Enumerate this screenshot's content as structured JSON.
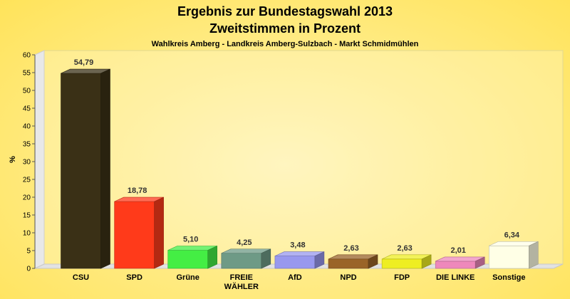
{
  "chart_data": {
    "type": "bar",
    "title": "Ergebnis zur Bundestagswahl 2013",
    "title_line2": "Zweitstimmen in Prozent",
    "subtitle": "Wahlkreis Amberg - Landkreis Amberg-Sulzbach - Markt Schmidmühlen",
    "ylabel": "%",
    "xlabel": "",
    "ylim": [
      0,
      60
    ],
    "yticks": [
      0,
      5,
      10,
      15,
      20,
      25,
      30,
      35,
      40,
      45,
      50,
      55,
      60
    ],
    "categories": [
      "CSU",
      "SPD",
      "Grüne",
      "FREIE WÄHLER",
      "AfD",
      "NPD",
      "FDP",
      "DIE LINKE",
      "Sonstige"
    ],
    "category_lines": [
      [
        "CSU"
      ],
      [
        "SPD"
      ],
      [
        "Grüne"
      ],
      [
        "FREIE",
        "WÄHLER"
      ],
      [
        "AfD"
      ],
      [
        "NPD"
      ],
      [
        "FDP"
      ],
      [
        "DIE LINKE"
      ],
      [
        "Sonstige"
      ]
    ],
    "values": [
      54.79,
      18.78,
      5.1,
      4.25,
      3.48,
      2.63,
      2.63,
      2.01,
      6.34
    ],
    "value_labels": [
      "54,79",
      "18,78",
      "5,10",
      "4,25",
      "3,48",
      "2,63",
      "2,63",
      "2,01",
      "6,34"
    ],
    "colors": [
      "#3a3016",
      "#ff3a1a",
      "#44ee44",
      "#6e9a86",
      "#9898ee",
      "#9a6428",
      "#eeee22",
      "#ee88bb",
      "#ffffe6"
    ],
    "grid": false,
    "legend": "none"
  }
}
